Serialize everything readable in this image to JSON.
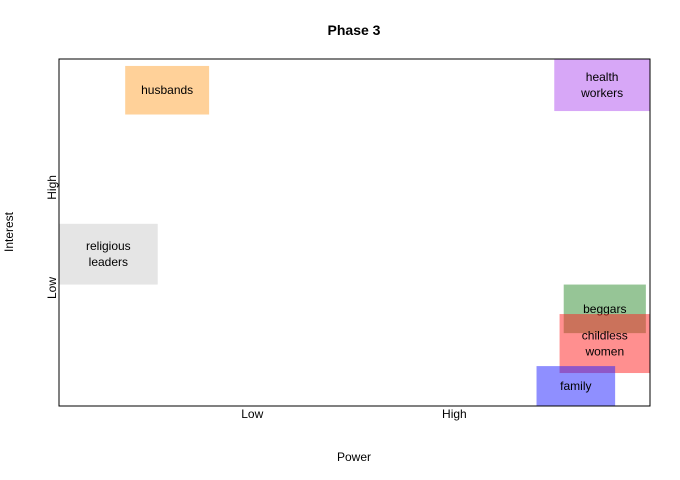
{
  "chart_data": {
    "type": "scatter",
    "title": "Phase 3",
    "xlabel": "Power",
    "ylabel": "Interest",
    "xlim": [
      0,
      10
    ],
    "ylim": [
      0,
      10
    ],
    "grid": false,
    "x_ticks": [
      {
        "value": 3.27,
        "label": "Low"
      },
      {
        "value": 6.69,
        "label": "High"
      }
    ],
    "y_ticks": [
      {
        "value": 3.4,
        "label": "Low"
      },
      {
        "value": 6.3,
        "label": "High"
      }
    ],
    "stakeholders": [
      {
        "name": "husbands",
        "label_lines": [
          "husbands"
        ],
        "power": [
          1.12,
          2.54
        ],
        "interest": [
          8.4,
          9.8
        ],
        "color": "#FFA333",
        "opacity": 0.5
      },
      {
        "name": "health workers",
        "label_lines": [
          "health",
          "workers"
        ],
        "power": [
          8.38,
          10.0
        ],
        "interest": [
          8.5,
          10.0
        ],
        "color": "#B04FF0",
        "opacity": 0.5
      },
      {
        "name": "religious leaders",
        "label_lines": [
          "religious",
          "leaders"
        ],
        "power": [
          0.0,
          1.67
        ],
        "interest": [
          3.5,
          5.25
        ],
        "color": "#CCCCCC",
        "opacity": 0.5
      },
      {
        "name": "beggars",
        "label_lines": [
          "beggars"
        ],
        "power": [
          8.54,
          9.93
        ],
        "interest": [
          2.1,
          3.5
        ],
        "color": "#2E8B2E",
        "opacity": 0.5
      },
      {
        "name": "childless women",
        "label_lines": [
          "childless",
          "women"
        ],
        "power": [
          8.47,
          10.0
        ],
        "interest": [
          0.95,
          2.65
        ],
        "color": "#FF2020",
        "opacity": 0.5
      },
      {
        "name": "family",
        "label_lines": [
          "family"
        ],
        "power": [
          8.08,
          9.41
        ],
        "interest": [
          0.0,
          1.15
        ],
        "color": "#2020FF",
        "opacity": 0.5
      }
    ]
  }
}
